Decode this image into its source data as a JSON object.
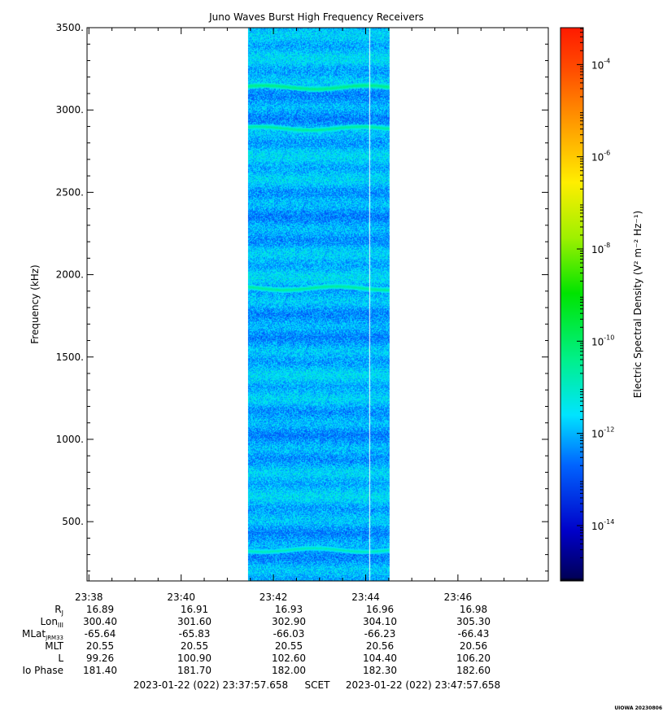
{
  "chart_data": {
    "type": "heatmap",
    "title": "Juno Waves Burst High Frequency Receivers",
    "ylabel": "Frequency (kHz)",
    "ylim": [
      140,
      3500
    ],
    "yticks": [
      {
        "v": 500,
        "label": "500."
      },
      {
        "v": 1000,
        "label": "1000."
      },
      {
        "v": 1500,
        "label": "1500."
      },
      {
        "v": 2000,
        "label": "2000."
      },
      {
        "v": 2500,
        "label": "2500."
      },
      {
        "v": 3000,
        "label": "3000."
      },
      {
        "v": 3500,
        "label": "3500."
      }
    ],
    "xlim_minutes": [
      37.9596,
      47.9596
    ],
    "xticks": [
      {
        "m": 38,
        "label": "23:38"
      },
      {
        "m": 40,
        "label": "23:40"
      },
      {
        "m": 42,
        "label": "23:42"
      },
      {
        "m": 44,
        "label": "23:44"
      },
      {
        "m": 46,
        "label": "23:46"
      }
    ],
    "data_window_minutes": [
      41.45,
      44.52
    ],
    "data_gap_minutes": 44.08,
    "background_log10_density": -12,
    "emission_bands": [
      {
        "freq_khz": 3140,
        "log10_density": -10.3
      },
      {
        "freq_khz": 2890,
        "log10_density": -10.5
      },
      {
        "freq_khz": 1920,
        "log10_density": -10.5
      },
      {
        "freq_khz": 330,
        "log10_density": -10.8
      }
    ],
    "colorbar": {
      "label": "Electric Spectral Density (V² m⁻² Hz⁻¹)",
      "log10_range": [
        -15.2,
        -3.2
      ],
      "ticks": [
        {
          "exp": -4,
          "label": "-4"
        },
        {
          "exp": -6,
          "label": "-6"
        },
        {
          "exp": -8,
          "label": "-8"
        },
        {
          "exp": -10,
          "label": "-10"
        },
        {
          "exp": -12,
          "label": "-12"
        },
        {
          "exp": -14,
          "label": "-14"
        }
      ]
    }
  },
  "ephemeris": {
    "labels": [
      "RJ",
      "LonIII",
      "MLatJRM33",
      "MLT",
      "L",
      "Io Phase"
    ],
    "rows": [
      [
        "16.89",
        "16.91",
        "16.93",
        "16.96",
        "16.98"
      ],
      [
        "300.40",
        "301.60",
        "302.90",
        "304.10",
        "305.30"
      ],
      [
        "-65.64",
        "-65.83",
        "-66.03",
        "-66.23",
        "-66.43"
      ],
      [
        "20.55",
        "20.55",
        "20.55",
        "20.56",
        "20.56"
      ],
      [
        "99.26",
        "100.90",
        "102.60",
        "104.40",
        "106.20"
      ],
      [
        "181.40",
        "181.70",
        "182.00",
        "182.30",
        "182.60"
      ]
    ]
  },
  "footer": {
    "start": "2023-01-22 (022) 23:37:57.658",
    "mid": "SCET",
    "end": "2023-01-22 (022) 23:47:57.658"
  },
  "credit": "UIOWA 20230806"
}
